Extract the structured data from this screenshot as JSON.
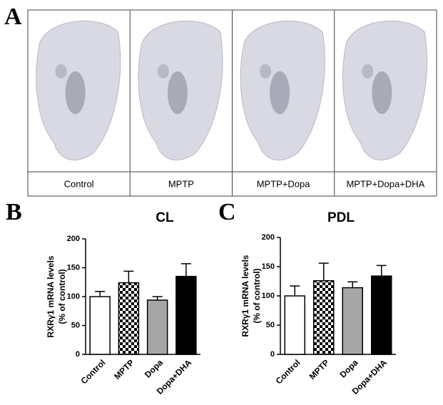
{
  "panel_letters": [
    "A",
    "B",
    "C"
  ],
  "section_labels": [
    "Control",
    "MPTP",
    "MPTP+Dopa",
    "MPTP+Dopa+DHA"
  ],
  "chart_data": [
    {
      "type": "bar",
      "title": "CL",
      "y_label": [
        "RXRγ1 mRNA levels",
        "(% of control)"
      ],
      "categories": [
        "Control",
        "MPTP",
        "Dopa",
        "Dopa+DHA"
      ],
      "values": [
        100,
        124,
        94,
        135
      ],
      "errors": [
        9,
        20,
        6,
        22
      ],
      "colors": [
        "#ffffff",
        "#ffffff",
        "#a6a6a6",
        "#000000"
      ],
      "patterns": [
        "none",
        "checker",
        "none",
        "none"
      ],
      "ylim": [
        0,
        200
      ],
      "yticks": [
        0,
        50,
        100,
        150,
        200
      ],
      "grid": false
    },
    {
      "type": "bar",
      "title": "PDL",
      "y_label": [
        "RXRγ1 mRNA levels",
        "(% of control)"
      ],
      "categories": [
        "Control",
        "MPTP",
        "Dopa",
        "Dopa+DHA"
      ],
      "values": [
        100,
        126,
        114,
        134
      ],
      "errors": [
        17,
        30,
        10,
        18
      ],
      "colors": [
        "#ffffff",
        "#ffffff",
        "#a6a6a6",
        "#000000"
      ],
      "patterns": [
        "none",
        "checker",
        "none",
        "none"
      ],
      "ylim": [
        0,
        200
      ],
      "yticks": [
        0,
        50,
        100,
        150,
        200
      ],
      "grid": false
    }
  ]
}
